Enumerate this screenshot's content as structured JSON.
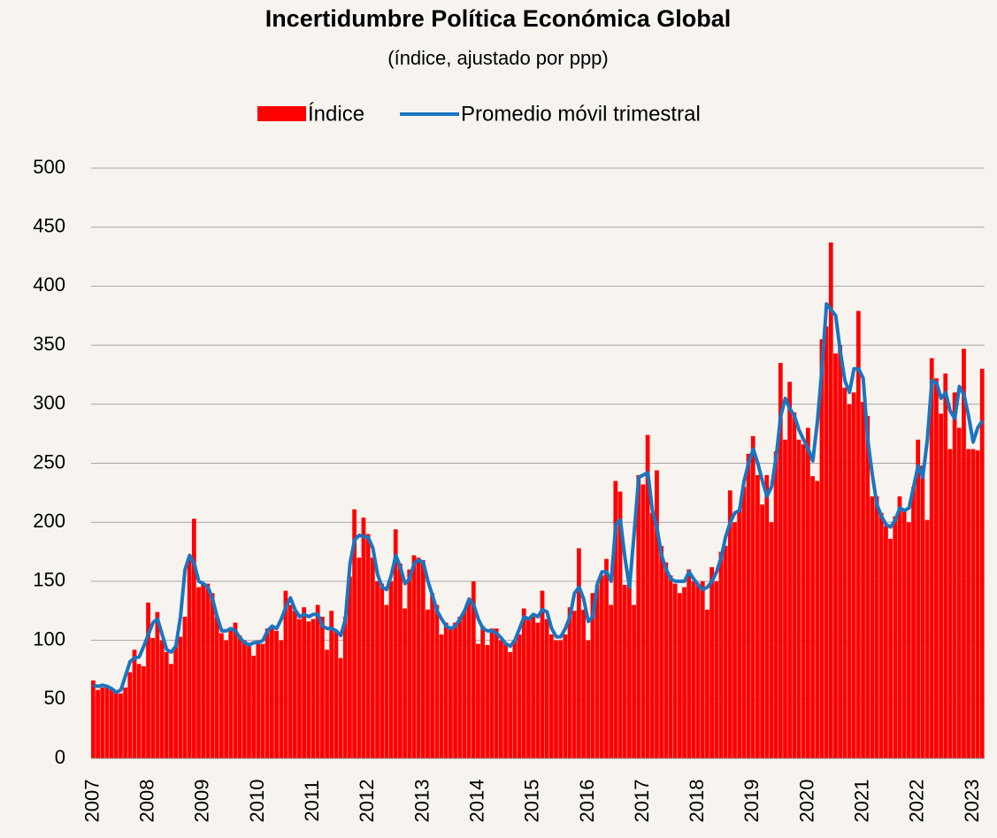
{
  "chart_data": {
    "type": "bar-line",
    "title": "Incertidumbre Política Económica Global",
    "subtitle": "(índice, ajustado por ppp)",
    "categories": [
      "2007",
      null,
      null,
      null,
      null,
      null,
      null,
      null,
      null,
      null,
      null,
      null,
      "2008",
      null,
      null,
      null,
      null,
      null,
      null,
      null,
      null,
      null,
      null,
      null,
      "2009",
      null,
      null,
      null,
      null,
      null,
      null,
      null,
      null,
      null,
      null,
      null,
      "2010",
      null,
      null,
      null,
      null,
      null,
      null,
      null,
      null,
      null,
      null,
      null,
      "2011",
      null,
      null,
      null,
      null,
      null,
      null,
      null,
      null,
      null,
      null,
      null,
      "2012",
      null,
      null,
      null,
      null,
      null,
      null,
      null,
      null,
      null,
      null,
      null,
      "2013",
      null,
      null,
      null,
      null,
      null,
      null,
      null,
      null,
      null,
      null,
      null,
      "2014",
      null,
      null,
      null,
      null,
      null,
      null,
      null,
      null,
      null,
      null,
      null,
      "2015",
      null,
      null,
      null,
      null,
      null,
      null,
      null,
      null,
      null,
      null,
      null,
      "2016",
      null,
      null,
      null,
      null,
      null,
      null,
      null,
      null,
      null,
      null,
      null,
      "2017",
      null,
      null,
      null,
      null,
      null,
      null,
      null,
      null,
      null,
      null,
      null,
      "2018",
      null,
      null,
      null,
      null,
      null,
      null,
      null,
      null,
      null,
      null,
      null,
      "2019",
      null,
      null,
      null,
      null,
      null,
      null,
      null,
      null,
      null,
      null,
      null,
      "2020",
      null,
      null,
      null,
      null,
      null,
      null,
      null,
      null,
      null,
      null,
      null,
      "2021",
      null,
      null,
      null,
      null,
      null,
      null,
      null,
      null,
      null,
      null,
      null,
      "2022",
      null,
      null,
      null,
      null,
      null,
      null,
      null,
      null,
      null,
      null,
      null,
      "2023",
      null,
      null
    ],
    "series": [
      {
        "name": "Índice",
        "kind": "bar",
        "color": "#ff0000",
        "values": [
          66,
          58,
          60,
          62,
          58,
          56,
          55,
          60,
          73,
          92,
          80,
          78,
          132,
          102,
          124,
          100,
          90,
          80,
          95,
          103,
          120,
          169,
          203,
          145,
          148,
          148,
          140,
          120,
          106,
          100,
          110,
          115,
          104,
          100,
          98,
          87,
          100,
          97,
          110,
          112,
          108,
          100,
          142,
          130,
          125,
          118,
          128,
          116,
          118,
          130,
          120,
          92,
          125,
          108,
          85,
          120,
          154,
          211,
          170,
          204,
          190,
          170,
          150,
          148,
          130,
          150,
          194,
          165,
          127,
          160,
          172,
          170,
          168,
          126,
          140,
          130,
          105,
          115,
          110,
          115,
          120,
          125,
          132,
          150,
          97,
          112,
          96,
          110,
          110,
          100,
          98,
          90,
          100,
          105,
          127,
          118,
          120,
          115,
          142,
          118,
          105,
          100,
          100,
          105,
          128,
          125,
          178,
          126,
          100,
          140,
          147,
          155,
          169,
          130,
          235,
          226,
          147,
          153,
          130,
          240,
          232,
          274,
          208,
          244,
          180,
          166,
          155,
          148,
          140,
          145,
          160,
          150,
          148,
          150,
          126,
          162,
          150,
          175,
          180,
          227,
          200,
          210,
          230,
          258,
          273,
          240,
          215,
          240,
          200,
          260,
          335,
          270,
          319,
          293,
          270,
          266,
          280,
          239,
          235,
          355,
          366,
          437,
          343,
          350,
          314,
          300,
          310,
          379,
          302,
          290,
          222,
          222,
          208,
          197,
          186,
          205,
          222,
          210,
          200,
          230,
          270,
          248,
          202,
          339,
          322,
          292,
          326,
          262,
          310,
          280,
          347,
          262,
          262,
          261,
          330
        ]
      },
      {
        "name": "Promedio móvil trimestral",
        "kind": "line",
        "color": "#1a75bf",
        "values": [
          62,
          61,
          62,
          61,
          59,
          56,
          58,
          70,
          82,
          85,
          86,
          95,
          105,
          115,
          118,
          105,
          92,
          90,
          95,
          120,
          160,
          172,
          165,
          150,
          148,
          145,
          135,
          120,
          108,
          108,
          110,
          108,
          102,
          98,
          96,
          98,
          98,
          100,
          108,
          112,
          110,
          118,
          128,
          136,
          126,
          120,
          122,
          120,
          122,
          122,
          112,
          110,
          110,
          108,
          104,
          118,
          165,
          185,
          189,
          188,
          187,
          178,
          156,
          145,
          143,
          155,
          172,
          162,
          148,
          152,
          165,
          168,
          166,
          150,
          138,
          125,
          118,
          112,
          110,
          112,
          118,
          125,
          135,
          130,
          118,
          110,
          108,
          108,
          106,
          102,
          97,
          95,
          100,
          110,
          120,
          118,
          122,
          120,
          126,
          124,
          110,
          103,
          103,
          110,
          120,
          140,
          145,
          135,
          116,
          120,
          148,
          158,
          158,
          150,
          198,
          202,
          170,
          145,
          190,
          238,
          240,
          242,
          210,
          195,
          172,
          160,
          152,
          150,
          150,
          150,
          158,
          152,
          147,
          143,
          145,
          150,
          158,
          170,
          188,
          200,
          208,
          210,
          235,
          250,
          262,
          250,
          235,
          222,
          230,
          255,
          290,
          305,
          296,
          290,
          278,
          270,
          262,
          252,
          285,
          330,
          385,
          380,
          375,
          345,
          320,
          310,
          330,
          330,
          322,
          270,
          240,
          215,
          205,
          198,
          196,
          202,
          212,
          210,
          212,
          230,
          248,
          238,
          270,
          320,
          318,
          305,
          310,
          294,
          288,
          315,
          308,
          290,
          268,
          280,
          286
        ]
      }
    ],
    "ylim": [
      0,
      500
    ],
    "yticks": [
      0,
      50,
      100,
      150,
      200,
      250,
      300,
      350,
      400,
      450,
      500
    ],
    "grid": true,
    "legend": "top"
  }
}
